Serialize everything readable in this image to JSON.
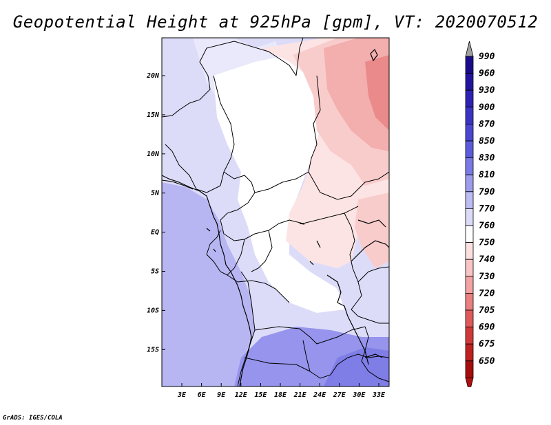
{
  "title": "Geopotential Height at 925hPa [gpm], VT: 2020070512",
  "credit": "GrADS: IGES/COLA",
  "map": {
    "lat_labels": [
      "20N",
      "15N",
      "10N",
      "5N",
      "EQ",
      "5S",
      "10S",
      "15S"
    ],
    "lon_labels": [
      "3E",
      "6E",
      "9E",
      "12E",
      "15E",
      "18E",
      "21E",
      "24E",
      "27E",
      "30E",
      "33E"
    ]
  },
  "colorbar": {
    "levels": [
      "990",
      "960",
      "930",
      "900",
      "870",
      "850",
      "830",
      "810",
      "790",
      "770",
      "760",
      "750",
      "740",
      "730",
      "720",
      "705",
      "690",
      "675",
      "650"
    ],
    "colors": [
      "#1a0a8c",
      "#2314a0",
      "#2e22b4",
      "#3a33c4",
      "#4a47d2",
      "#5b5cdc",
      "#7a7ae6",
      "#9d9ced",
      "#bdbcf3",
      "#dcdcf9",
      "#ffffff",
      "#fde0e0",
      "#f9c4c4",
      "#f3a3a3",
      "#ea8080",
      "#e05a5a",
      "#d23838",
      "#c02020",
      "#a80d0d"
    ],
    "over_color": "#a0a0a0",
    "under_color": "#b01010"
  },
  "regions_colors": {
    "ocean": "#b8b6f2",
    "south": "#9694ec",
    "southdeep": "#7f7de6",
    "land_light": "#dcdcf9",
    "land_lighter": "#e9e9fb",
    "white": "#ffffff",
    "pink1": "#fde4e4",
    "pink2": "#f9cccc",
    "pink3": "#f3aeae",
    "pink4": "#ea8a8a"
  }
}
